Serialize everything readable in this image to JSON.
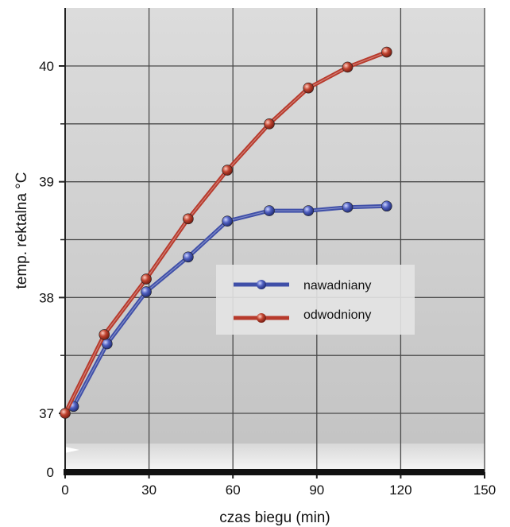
{
  "chart_data": {
    "type": "line",
    "xlabel": "czas biegu (min)",
    "ylabel": "temp. rektalna °C",
    "xlim": [
      0,
      150
    ],
    "ylim": [
      37,
      40.45
    ],
    "x_ticks": [
      0,
      30,
      60,
      90,
      120,
      150
    ],
    "y_ticks": [
      37,
      38,
      39,
      40
    ],
    "y_minor_ticks": [
      37.5,
      38.5,
      39.5
    ],
    "y_axis_break_label": "0",
    "grid": true,
    "legend_position": "center-right",
    "series": [
      {
        "name": "nawadniany",
        "color": "#3f4fa8",
        "x": [
          3,
          15,
          29,
          44,
          58,
          73,
          87,
          101,
          115
        ],
        "y": [
          37.06,
          37.6,
          38.05,
          38.35,
          38.66,
          38.75,
          38.75,
          38.78,
          38.79
        ]
      },
      {
        "name": "odwodniony",
        "color": "#b73a2c",
        "x": [
          0,
          14,
          29,
          44,
          58,
          73,
          87,
          101,
          115
        ],
        "y": [
          37.0,
          37.68,
          38.16,
          38.68,
          39.1,
          39.5,
          39.81,
          39.99,
          40.12
        ]
      }
    ]
  }
}
